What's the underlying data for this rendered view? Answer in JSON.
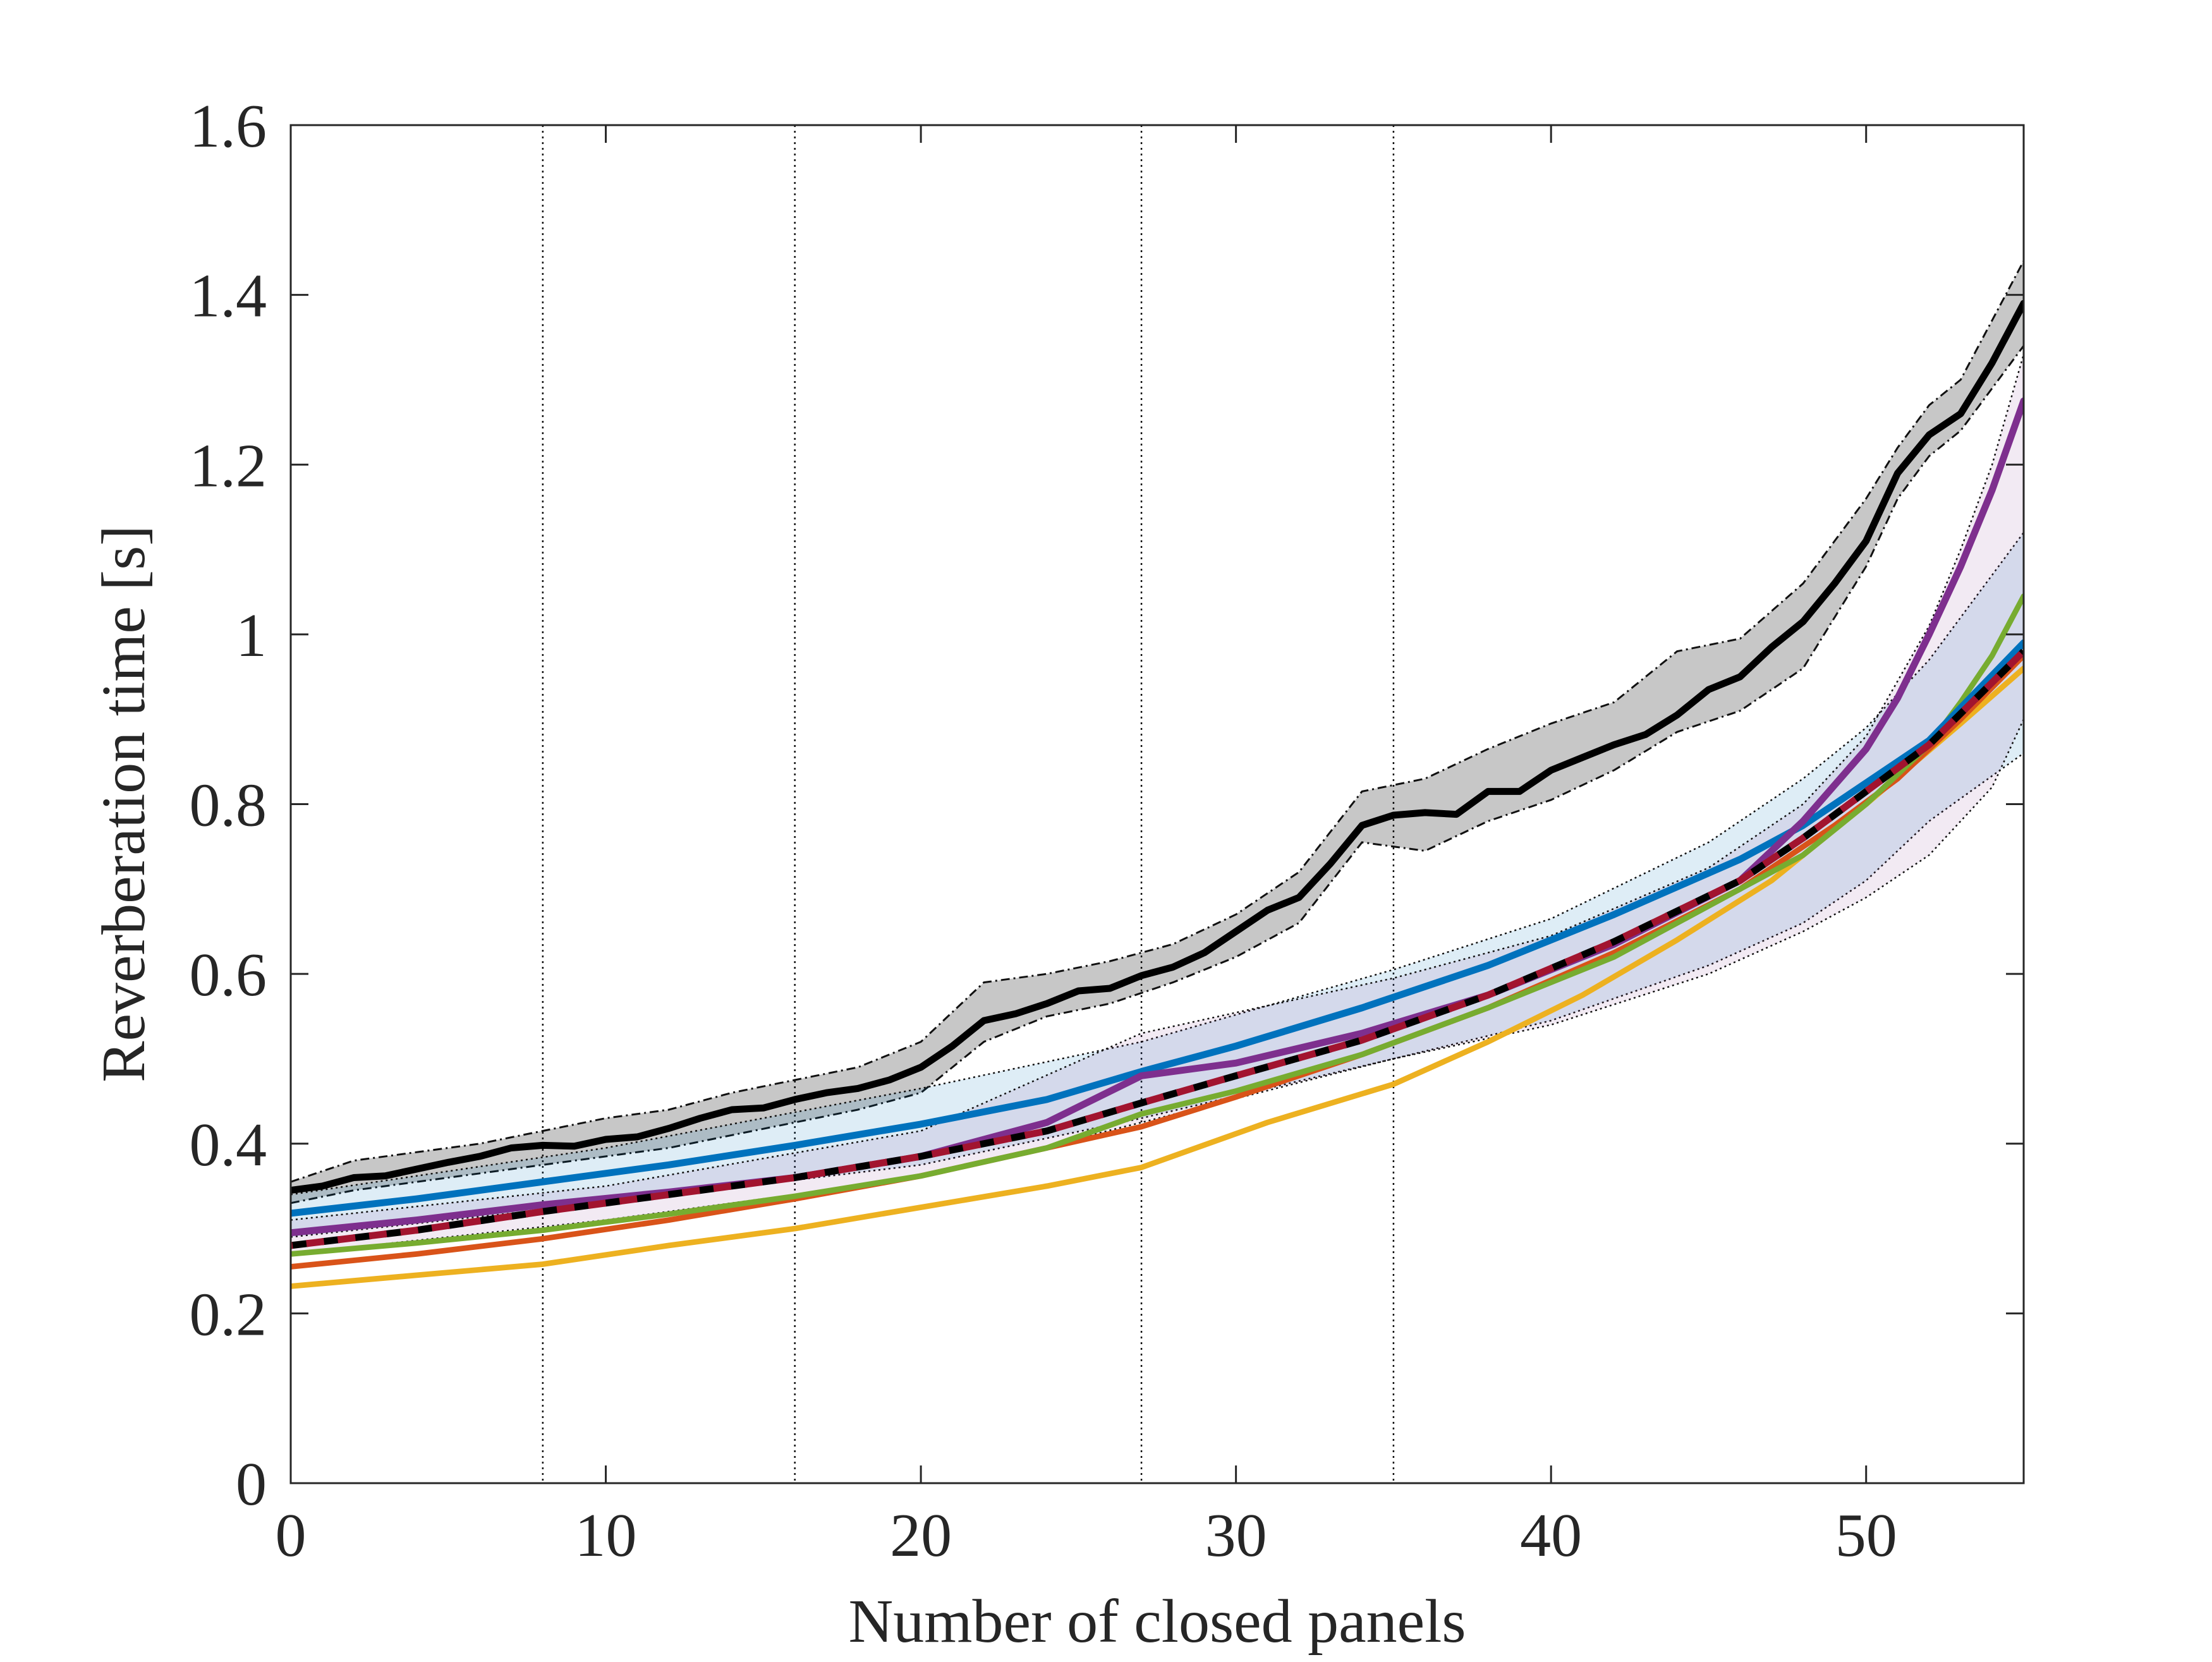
{
  "chart_data": {
    "type": "line",
    "title": "",
    "xlabel": "Number of closed panels",
    "ylabel": "Reverberation time [s]",
    "xlim": [
      0,
      55
    ],
    "ylim": [
      0,
      1.6
    ],
    "xticks": [
      0,
      10,
      20,
      30,
      40,
      50
    ],
    "xtick_labels": [
      "0",
      "10",
      "20",
      "30",
      "40",
      "50"
    ],
    "yticks": [
      0,
      0.2,
      0.4,
      0.6,
      0.8,
      1.0,
      1.2,
      1.4,
      1.6
    ],
    "ytick_labels": [
      "0",
      "0.2",
      "0.4",
      "0.6",
      "0.8",
      "1",
      "1.2",
      "1.4",
      "1.6"
    ],
    "vertical_reference_lines": [
      8,
      16,
      27,
      35
    ],
    "grid": false,
    "legend": "none",
    "bands": [
      {
        "name": "black-measured-range",
        "color": "#000000",
        "x": [
          0,
          2,
          4,
          6,
          8,
          10,
          12,
          14,
          16,
          18,
          20,
          22,
          24,
          26,
          28,
          30,
          32,
          34,
          36,
          38,
          40,
          42,
          44,
          46,
          48,
          50,
          51,
          52,
          53,
          54,
          55
        ],
        "lower": [
          0.33,
          0.345,
          0.355,
          0.365,
          0.375,
          0.385,
          0.395,
          0.41,
          0.425,
          0.44,
          0.46,
          0.52,
          0.55,
          0.565,
          0.59,
          0.62,
          0.66,
          0.755,
          0.745,
          0.78,
          0.805,
          0.84,
          0.885,
          0.91,
          0.96,
          1.08,
          1.16,
          1.21,
          1.24,
          1.29,
          1.34
        ],
        "upper": [
          0.355,
          0.38,
          0.39,
          0.4,
          0.415,
          0.43,
          0.44,
          0.46,
          0.475,
          0.49,
          0.52,
          0.59,
          0.6,
          0.615,
          0.635,
          0.67,
          0.72,
          0.815,
          0.83,
          0.865,
          0.895,
          0.92,
          0.98,
          0.995,
          1.06,
          1.16,
          1.22,
          1.27,
          1.3,
          1.37,
          1.44
        ],
        "opacity": 0.22
      },
      {
        "name": "blue-range",
        "color": "#0072BD",
        "x": [
          0,
          10,
          20,
          27,
          35,
          40,
          45,
          48,
          50,
          52,
          55
        ],
        "lower": [
          0.29,
          0.33,
          0.375,
          0.43,
          0.5,
          0.545,
          0.61,
          0.66,
          0.71,
          0.78,
          0.86
        ],
        "upper": [
          0.34,
          0.395,
          0.465,
          0.52,
          0.605,
          0.665,
          0.755,
          0.83,
          0.89,
          0.97,
          1.12
        ],
        "opacity": 0.13
      },
      {
        "name": "purple-range",
        "color": "#7E2F8E",
        "x": [
          0,
          10,
          20,
          27,
          35,
          40,
          45,
          48,
          50,
          52,
          53,
          54,
          55
        ],
        "lower": [
          0.27,
          0.31,
          0.36,
          0.425,
          0.5,
          0.54,
          0.6,
          0.65,
          0.69,
          0.74,
          0.78,
          0.82,
          0.9
        ],
        "upper": [
          0.31,
          0.35,
          0.415,
          0.53,
          0.595,
          0.645,
          0.725,
          0.8,
          0.88,
          1.01,
          1.1,
          1.2,
          1.33
        ],
        "opacity": 0.1
      }
    ],
    "series": [
      {
        "name": "black-measured",
        "color": "#000000",
        "style": "solid",
        "width": 5,
        "x": [
          0,
          1,
          2,
          3,
          4,
          5,
          6,
          7,
          8,
          9,
          10,
          11,
          12,
          13,
          14,
          15,
          16,
          17,
          18,
          19,
          20,
          21,
          22,
          23,
          24,
          25,
          26,
          27,
          28,
          29,
          30,
          31,
          32,
          33,
          34,
          35,
          36,
          37,
          38,
          39,
          40,
          41,
          42,
          43,
          44,
          45,
          46,
          47,
          48,
          49,
          50,
          51,
          52,
          53,
          54,
          55
        ],
        "values": [
          0.345,
          0.35,
          0.36,
          0.362,
          0.37,
          0.378,
          0.385,
          0.395,
          0.398,
          0.397,
          0.405,
          0.408,
          0.418,
          0.43,
          0.44,
          0.442,
          0.452,
          0.46,
          0.465,
          0.475,
          0.49,
          0.515,
          0.545,
          0.553,
          0.565,
          0.58,
          0.583,
          0.598,
          0.608,
          0.625,
          0.65,
          0.675,
          0.69,
          0.73,
          0.775,
          0.787,
          0.79,
          0.788,
          0.815,
          0.815,
          0.84,
          0.855,
          0.87,
          0.882,
          0.905,
          0.935,
          0.95,
          0.985,
          1.015,
          1.06,
          1.11,
          1.19,
          1.235,
          1.26,
          1.32,
          1.39
        ]
      },
      {
        "name": "yellow",
        "color": "#EDB120",
        "style": "solid",
        "width": 4,
        "x": [
          0,
          4,
          8,
          12,
          16,
          20,
          24,
          27,
          31,
          35,
          38,
          41,
          44,
          47,
          50,
          53,
          55
        ],
        "values": [
          0.232,
          0.245,
          0.258,
          0.28,
          0.3,
          0.325,
          0.35,
          0.372,
          0.425,
          0.47,
          0.52,
          0.575,
          0.64,
          0.71,
          0.8,
          0.895,
          0.96
        ]
      },
      {
        "name": "orange",
        "color": "#D95319",
        "style": "solid",
        "width": 4,
        "x": [
          0,
          4,
          8,
          12,
          16,
          20,
          24,
          27,
          30,
          34,
          38,
          42,
          46,
          49,
          51,
          53,
          55
        ],
        "values": [
          0.255,
          0.27,
          0.288,
          0.31,
          0.335,
          0.362,
          0.395,
          0.42,
          0.455,
          0.505,
          0.56,
          0.625,
          0.7,
          0.775,
          0.83,
          0.9,
          0.975
        ]
      },
      {
        "name": "green",
        "color": "#77AC30",
        "style": "solid",
        "width": 4,
        "x": [
          0,
          4,
          8,
          12,
          16,
          20,
          24,
          27,
          30,
          34,
          38,
          42,
          46,
          48,
          50,
          52,
          53,
          54,
          55
        ],
        "values": [
          0.27,
          0.283,
          0.298,
          0.317,
          0.338,
          0.362,
          0.395,
          0.435,
          0.462,
          0.505,
          0.56,
          0.62,
          0.7,
          0.74,
          0.8,
          0.87,
          0.92,
          0.975,
          1.045
        ]
      },
      {
        "name": "blue",
        "color": "#0072BD",
        "style": "solid",
        "width": 5,
        "x": [
          0,
          4,
          8,
          12,
          16,
          20,
          24,
          27,
          30,
          34,
          38,
          42,
          46,
          48,
          50,
          52,
          55
        ],
        "values": [
          0.318,
          0.335,
          0.355,
          0.375,
          0.398,
          0.423,
          0.452,
          0.485,
          0.515,
          0.56,
          0.61,
          0.67,
          0.735,
          0.775,
          0.825,
          0.875,
          0.99
        ]
      },
      {
        "name": "purple",
        "color": "#7E2F8E",
        "style": "solid",
        "width": 5,
        "x": [
          0,
          4,
          8,
          12,
          16,
          20,
          24,
          27,
          30,
          34,
          38,
          42,
          46,
          48,
          50,
          51,
          52,
          53,
          54,
          55
        ],
        "values": [
          0.295,
          0.31,
          0.328,
          0.343,
          0.36,
          0.385,
          0.425,
          0.48,
          0.495,
          0.53,
          0.575,
          0.635,
          0.71,
          0.78,
          0.865,
          0.925,
          1.0,
          1.08,
          1.17,
          1.275
        ]
      },
      {
        "name": "black-dashed-model",
        "color": "#000000",
        "style": "dashed",
        "width": 5,
        "x": [
          0,
          4,
          8,
          12,
          16,
          20,
          24,
          27,
          30,
          34,
          38,
          42,
          46,
          48,
          50,
          52,
          55
        ],
        "values": [
          0.28,
          0.298,
          0.32,
          0.34,
          0.36,
          0.385,
          0.415,
          0.448,
          0.48,
          0.522,
          0.575,
          0.638,
          0.71,
          0.76,
          0.815,
          0.87,
          0.98
        ]
      },
      {
        "name": "maroon-dashed-model",
        "color": "#A2142F",
        "style": "dashed-offset",
        "width": 5,
        "x": [
          0,
          4,
          8,
          12,
          16,
          20,
          24,
          27,
          30,
          34,
          38,
          42,
          46,
          48,
          50,
          52,
          55
        ],
        "values": [
          0.28,
          0.298,
          0.32,
          0.34,
          0.36,
          0.385,
          0.415,
          0.448,
          0.48,
          0.522,
          0.575,
          0.638,
          0.71,
          0.76,
          0.815,
          0.87,
          0.98
        ]
      }
    ]
  }
}
